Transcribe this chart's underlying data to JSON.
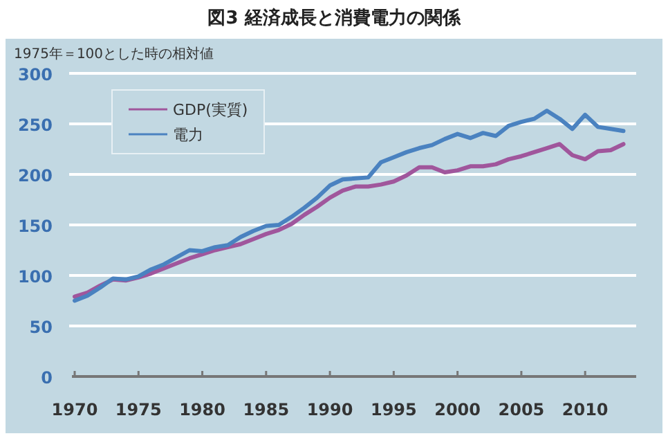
{
  "chart_data": {
    "type": "line",
    "title": "図3 経済成長と消費電力の関係",
    "ylabel": "1975年＝100とした時の相対値",
    "x": [
      1970,
      1971,
      1972,
      1973,
      1974,
      1975,
      1976,
      1977,
      1978,
      1979,
      1980,
      1981,
      1982,
      1983,
      1984,
      1985,
      1986,
      1987,
      1988,
      1989,
      1990,
      1991,
      1992,
      1993,
      1994,
      1995,
      1996,
      1997,
      1998,
      1999,
      2000,
      2001,
      2002,
      2003,
      2004,
      2005,
      2006,
      2007,
      2008,
      2009,
      2010,
      2011,
      2012,
      2013
    ],
    "series": [
      {
        "name": "GDP(実質)",
        "color": "#a0569c",
        "values": [
          79,
          83,
          90,
          96,
          95,
          98,
          102,
          107,
          112,
          117,
          121,
          125,
          128,
          131,
          136,
          141,
          145,
          151,
          160,
          168,
          177,
          184,
          188,
          188,
          190,
          193,
          199,
          207,
          207,
          202,
          204,
          208,
          208,
          210,
          215,
          218,
          222,
          226,
          230,
          219,
          215,
          223,
          224,
          230
        ]
      },
      {
        "name": "電力",
        "color": "#4a82c0",
        "values": [
          75,
          80,
          88,
          97,
          96,
          99,
          106,
          111,
          118,
          125,
          124,
          128,
          130,
          138,
          144,
          149,
          150,
          158,
          167,
          177,
          189,
          195,
          196,
          197,
          212,
          217,
          222,
          226,
          229,
          235,
          240,
          236,
          241,
          238,
          248,
          252,
          255,
          263,
          255,
          245,
          259,
          247,
          245,
          243
        ]
      }
    ],
    "xlim": [
      1970,
      2014
    ],
    "xticks": [
      1970,
      1975,
      1980,
      1985,
      1990,
      1995,
      2000,
      2005,
      2010
    ],
    "ylim": [
      0,
      300
    ],
    "yticks": [
      0,
      50,
      100,
      150,
      200,
      250,
      300
    ],
    "grid": "y",
    "legend": "top left",
    "line_style": "solid",
    "marker": "none"
  }
}
